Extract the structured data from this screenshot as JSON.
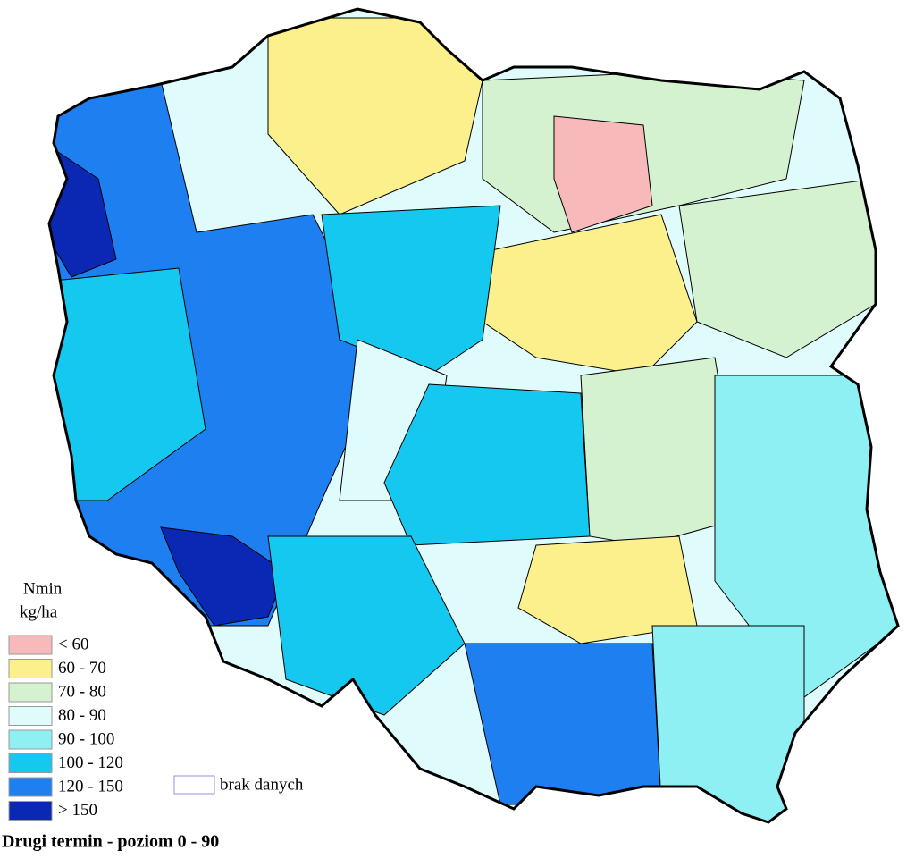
{
  "legend": {
    "title": [
      "Nmin",
      "kg/ha"
    ],
    "items": [
      {
        "label": "< 60",
        "color": "#f7b9b9"
      },
      {
        "label": "60 - 70",
        "color": "#fbf08c"
      },
      {
        "label": "70 - 80",
        "color": "#d4f2d0"
      },
      {
        "label": "80 - 90",
        "color": "#e0fbfb"
      },
      {
        "label": "90 - 100",
        "color": "#8ff0f4"
      },
      {
        "label": "100 - 120",
        "color": "#14c8f0"
      },
      {
        "label": "120 - 150",
        "color": "#1e7ff0"
      },
      {
        "label": "> 150",
        "color": "#0a28b4"
      }
    ],
    "no_data": "brak danych"
  },
  "caption": "Drugi termin - poziom 0 - 90"
}
